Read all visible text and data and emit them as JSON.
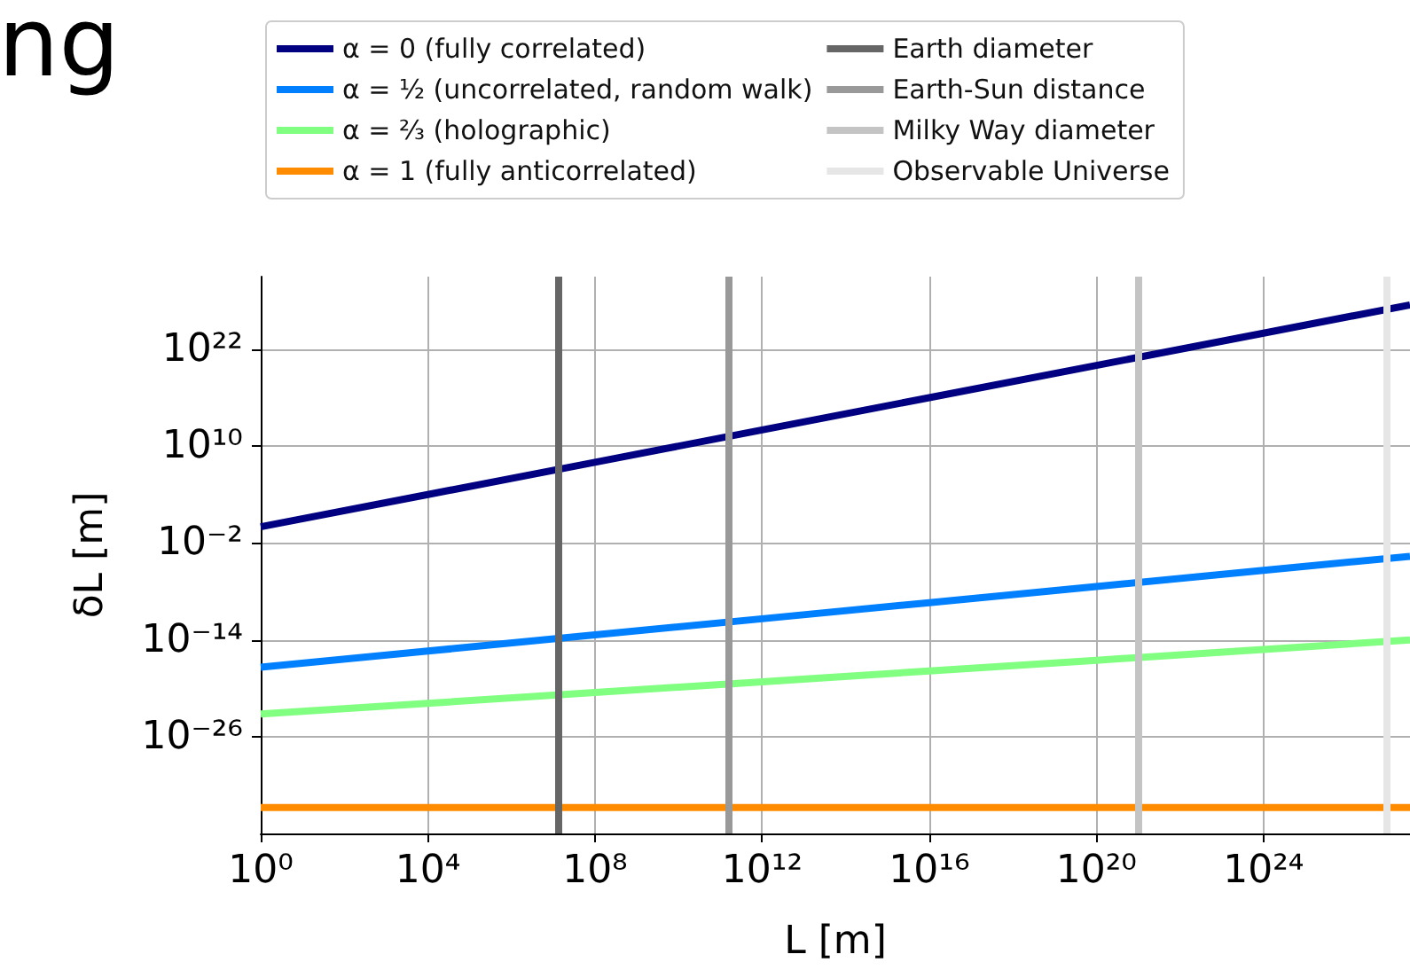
{
  "chart_data": {
    "type": "line",
    "title": "ng",
    "xlabel": "L [m]",
    "ylabel": "δL [m]",
    "log": "xy",
    "x": [
      1,
      10000.0,
      100000000.0,
      1000000000000.0,
      1e+16,
      1e+20,
      1e+24,
      3.2e+27
    ],
    "series": [
      {
        "name": "α = 0 (fully correlated)",
        "color": "#000080",
        "values": [
          1,
          10000.0,
          100000000.0,
          1000000000000.0,
          1e+16,
          1e+20,
          1e+24,
          3.2e+27
        ]
      },
      {
        "name": "α = ½ (uncorrelated, random walk)",
        "color": "#0080ff",
        "values": [
          4e-18,
          4e-16,
          4e-14,
          4e-12,
          4e-10,
          4e-08,
          4e-06,
          0.00022
        ]
      },
      {
        "name": "α = ⅔ (holographic)",
        "color": "#80ff80",
        "values": [
          6.3e-24,
          1.35e-22,
          2.9e-21,
          6.3e-20,
          1.35e-18,
          2.9e-17,
          6.3e-16,
          9.3e-15
        ]
      },
      {
        "name": "α = 1 (fully anticorrelated)",
        "color": "#ff8c00",
        "values": [
          1.6e-35,
          1.6e-35,
          1.6e-35,
          1.6e-35,
          1.6e-35,
          1.6e-35,
          1.6e-35,
          1.6e-35
        ]
      }
    ],
    "xlim": [
      1,
      3.2e+27
    ],
    "ylim": [
      1e-38,
      1e+31
    ],
    "xticks": [
      {
        "value": 1,
        "label": "10⁰"
      },
      {
        "value": 10000.0,
        "label": "10⁴"
      },
      {
        "value": 100000000.0,
        "label": "10⁸"
      },
      {
        "value": 1000000000000.0,
        "label": "10¹²"
      },
      {
        "value": 1e+16,
        "label": "10¹⁶"
      },
      {
        "value": 1e+20,
        "label": "10²⁰"
      },
      {
        "value": 1e+24,
        "label": "10²⁴"
      }
    ],
    "yticks": [
      {
        "value": 1e-26,
        "label": "10⁻²⁶"
      },
      {
        "value": 1e-14,
        "label": "10⁻¹⁴"
      },
      {
        "value": 0.01,
        "label": "10⁻²"
      },
      {
        "value": 10000000000.0,
        "label": "10¹⁰"
      },
      {
        "value": 1e+22,
        "label": "10²²"
      }
    ],
    "ref_lines": [
      {
        "axis": "x",
        "value": 12700000.0,
        "label": "Earth diameter",
        "color": "#666666"
      },
      {
        "axis": "x",
        "value": 150000000000.0,
        "label": "Earth-Sun distance",
        "color": "#999999"
      },
      {
        "axis": "x",
        "value": 1e+21,
        "label": "Milky Way diameter",
        "color": "#c4c4c4"
      },
      {
        "axis": "x",
        "value": 8.8e+26,
        "label": "Observable Universe",
        "color": "#e6e6e6"
      }
    ],
    "grid": true,
    "legend": "top",
    "marker": "none",
    "line_style": "solid"
  }
}
